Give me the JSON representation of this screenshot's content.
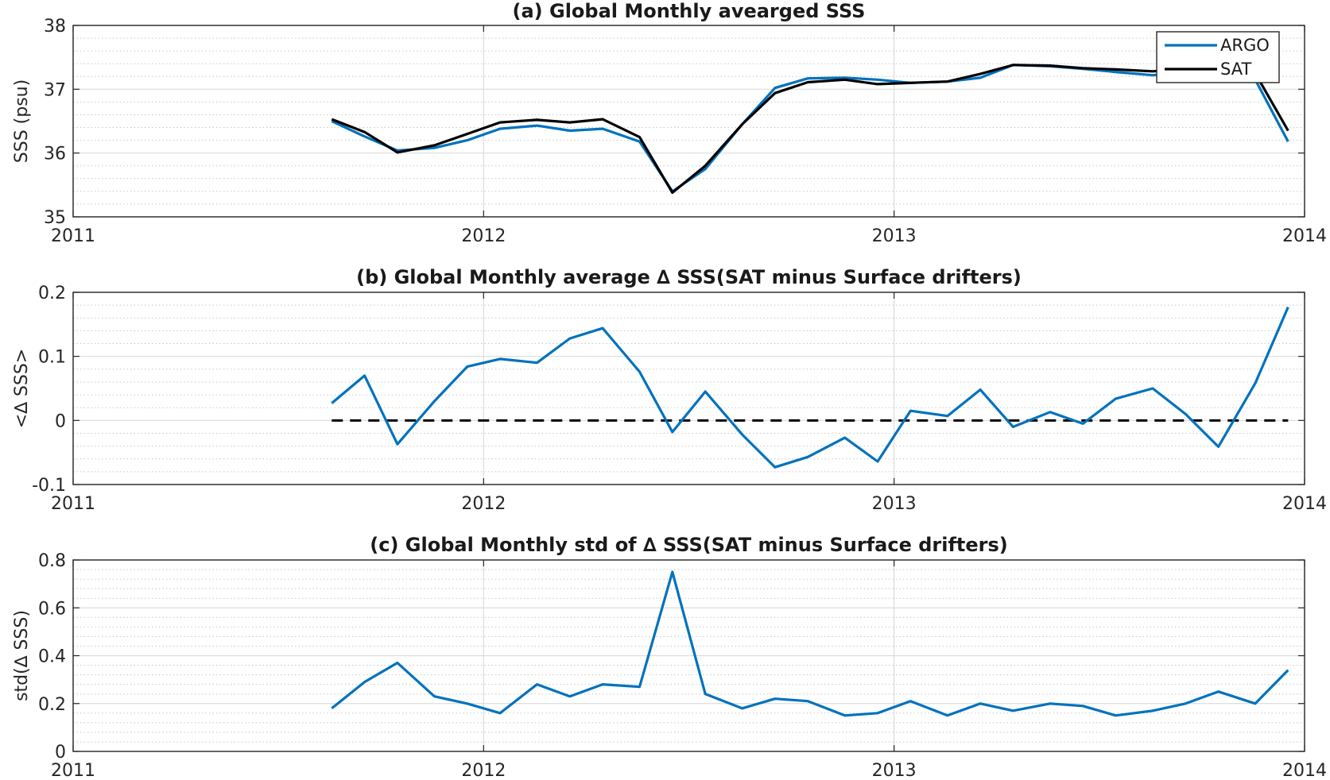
{
  "chart_data": [
    {
      "type": "line",
      "title": "(a) Global Monthly avearged SSS",
      "xlabel": "",
      "ylabel": "SSS (psu)",
      "xlim": [
        2011,
        2014
      ],
      "ylim": [
        35,
        38
      ],
      "xticks": [
        2011,
        2012,
        2013,
        2014
      ],
      "xtick_labels": [
        "2011",
        "2012",
        "2013",
        "2014"
      ],
      "yticks": [
        35,
        36,
        37,
        38
      ],
      "ytick_labels": [
        "35",
        "36",
        "37",
        "38"
      ],
      "grid": true,
      "minor_grid": true,
      "legend": "top-right",
      "x": [
        2011.63,
        2011.71,
        2011.79,
        2011.88,
        2011.96,
        2012.04,
        2012.13,
        2012.21,
        2012.29,
        2012.38,
        2012.46,
        2012.54,
        2012.63,
        2012.71,
        2012.79,
        2012.88,
        2012.96,
        2013.04,
        2013.13,
        2013.21,
        2013.29,
        2013.38,
        2013.46,
        2013.54,
        2013.63,
        2013.71,
        2013.79,
        2013.88,
        2013.96
      ],
      "series": [
        {
          "name": "ARGO",
          "color": "#0072BD",
          "values": [
            36.5,
            36.26,
            36.04,
            36.08,
            36.2,
            36.38,
            36.43,
            36.35,
            36.38,
            36.18,
            35.4,
            35.75,
            36.45,
            37.02,
            37.17,
            37.18,
            37.15,
            37.1,
            37.12,
            37.18,
            37.38,
            37.36,
            37.32,
            37.27,
            37.22,
            37.27,
            37.3,
            37.15,
            36.18
          ]
        },
        {
          "name": "SAT",
          "color": "#000000",
          "values": [
            36.53,
            36.33,
            36.01,
            36.12,
            36.3,
            36.48,
            36.52,
            36.48,
            36.53,
            36.25,
            35.38,
            35.8,
            36.45,
            36.94,
            37.11,
            37.15,
            37.08,
            37.1,
            37.12,
            37.24,
            37.38,
            37.37,
            37.33,
            37.31,
            37.28,
            37.32,
            37.32,
            37.25,
            36.35
          ]
        }
      ]
    },
    {
      "type": "line",
      "title": "(b) Global Monthly average ∆ SSS(SAT minus Surface drifters)",
      "xlabel": "",
      "ylabel": "<∆ SSS>",
      "xlim": [
        2011,
        2014
      ],
      "ylim": [
        -0.1,
        0.2
      ],
      "xticks": [
        2011,
        2012,
        2013,
        2014
      ],
      "xtick_labels": [
        "2011",
        "2012",
        "2013",
        "2014"
      ],
      "yticks": [
        -0.1,
        0,
        0.1,
        0.2
      ],
      "ytick_labels": [
        "-0.1",
        "0",
        "0.1",
        "0.2"
      ],
      "grid": true,
      "minor_grid": true,
      "reference_line": {
        "y": 0,
        "style": "dashed",
        "color": "#000000",
        "x": [
          2011.63,
          2013.96
        ]
      },
      "x": [
        2011.63,
        2011.71,
        2011.79,
        2011.88,
        2011.96,
        2012.04,
        2012.13,
        2012.21,
        2012.29,
        2012.38,
        2012.46,
        2012.54,
        2012.63,
        2012.71,
        2012.79,
        2012.88,
        2012.96,
        2013.04,
        2013.13,
        2013.21,
        2013.29,
        2013.38,
        2013.46,
        2013.54,
        2013.63,
        2013.71,
        2013.79,
        2013.88,
        2013.96
      ],
      "series": [
        {
          "color": "#0072BD",
          "values": [
            0.027,
            0.07,
            -0.037,
            0.03,
            0.084,
            0.096,
            0.09,
            0.128,
            0.144,
            0.076,
            -0.018,
            0.045,
            -0.022,
            -0.073,
            -0.057,
            -0.027,
            -0.064,
            0.015,
            0.007,
            0.048,
            -0.01,
            0.013,
            -0.005,
            0.034,
            0.05,
            0.01,
            -0.041,
            0.058,
            0.177
          ]
        }
      ]
    },
    {
      "type": "line",
      "title": "(c) Global Monthly std of ∆ SSS(SAT minus Surface drifters)",
      "xlabel": "",
      "ylabel": "std(∆ SSS)",
      "xlim": [
        2011,
        2014
      ],
      "ylim": [
        0,
        0.8
      ],
      "xticks": [
        2011,
        2012,
        2013,
        2014
      ],
      "xtick_labels": [
        "2011",
        "2012",
        "2013",
        "2014"
      ],
      "yticks": [
        0,
        0.2,
        0.4,
        0.6,
        0.8
      ],
      "ytick_labels": [
        "0",
        "0.2",
        "0.4",
        "0.6",
        "0.8"
      ],
      "grid": true,
      "minor_grid": true,
      "x": [
        2011.63,
        2011.71,
        2011.79,
        2011.88,
        2011.96,
        2012.04,
        2012.13,
        2012.21,
        2012.29,
        2012.38,
        2012.46,
        2012.54,
        2012.63,
        2012.71,
        2012.79,
        2012.88,
        2012.96,
        2013.04,
        2013.13,
        2013.21,
        2013.29,
        2013.38,
        2013.46,
        2013.54,
        2013.63,
        2013.71,
        2013.79,
        2013.88,
        2013.96
      ],
      "series": [
        {
          "color": "#0072BD",
          "values": [
            0.18,
            0.29,
            0.37,
            0.23,
            0.2,
            0.16,
            0.28,
            0.23,
            0.28,
            0.27,
            0.75,
            0.24,
            0.18,
            0.22,
            0.21,
            0.15,
            0.16,
            0.21,
            0.15,
            0.2,
            0.17,
            0.2,
            0.19,
            0.15,
            0.17,
            0.2,
            0.25,
            0.2,
            0.34
          ]
        }
      ]
    }
  ]
}
